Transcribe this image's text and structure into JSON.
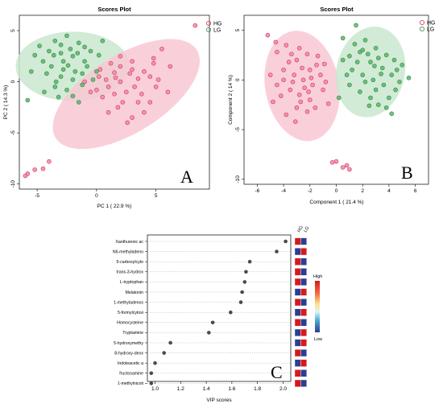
{
  "colors": {
    "hg": "#d9335e",
    "lg": "#2e8b3e",
    "hg_ellipse": "#f8c8d3",
    "lg_ellipse": "#c9e8cf",
    "heat_high": "#d7191c",
    "heat_low": "#2c3e91"
  },
  "chart_data": [
    {
      "panel": "A",
      "type": "scatter",
      "title": "Scores Plot",
      "xlabel": "PC 1 ( 22.9 %)",
      "ylabel": "PC 2 ( 14.3 %)",
      "xlim": [
        -6.5,
        9.5
      ],
      "ylim": [
        -10.5,
        6.5
      ],
      "xticks": [
        "-5",
        "0",
        "5"
      ],
      "xtick_values": [
        -5,
        0,
        5
      ],
      "yticks": [
        "-10",
        "-5",
        "0",
        "5"
      ],
      "ytick_values": [
        -10,
        -5,
        0,
        5
      ],
      "panel_label": "A",
      "legend": [
        "HG",
        "LG"
      ],
      "ellipses": [
        {
          "group": "LG",
          "cx": -2.0,
          "cy": 1.5,
          "rx": 4.8,
          "ry": 3.4,
          "angle": 0
        },
        {
          "group": "HG",
          "cx": 2.5,
          "cy": -1.2,
          "rx": 7.0,
          "ry": 3.8,
          "angle": 32
        }
      ],
      "series": [
        {
          "name": "HG",
          "points": [
            [
              8.3,
              5.5
            ],
            [
              5.5,
              3.2
            ],
            [
              4.8,
              2.3
            ],
            [
              6.2,
              1.5
            ],
            [
              0.2,
              0.5
            ],
            [
              1.5,
              0.9
            ],
            [
              2.0,
              1.5
            ],
            [
              3.0,
              2.0
            ],
            [
              4.0,
              1.0
            ],
            [
              1.0,
              -0.5
            ],
            [
              2.5,
              -1.0
            ],
            [
              3.5,
              -2.0
            ],
            [
              4.5,
              0.5
            ],
            [
              0.5,
              -1.5
            ],
            [
              1.8,
              -2.5
            ],
            [
              3.0,
              -3.5
            ],
            [
              4.5,
              -2.0
            ],
            [
              2.0,
              0.0
            ],
            [
              3.5,
              0.3
            ],
            [
              1.2,
              1.8
            ],
            [
              0.0,
              -0.8
            ],
            [
              2.8,
              0.8
            ],
            [
              5.0,
              -0.5
            ],
            [
              1.5,
              -1.2
            ],
            [
              2.2,
              -2.0
            ],
            [
              3.8,
              -1.2
            ],
            [
              4.0,
              -3.0
            ],
            [
              0.8,
              0.2
            ],
            [
              -0.5,
              -1.0
            ],
            [
              6.0,
              -1.0
            ],
            [
              2.0,
              2.5
            ],
            [
              3.2,
              -0.5
            ],
            [
              1.0,
              -3.0
            ],
            [
              4.8,
              1.8
            ],
            [
              -1.0,
              0.0
            ],
            [
              2.6,
              -4.0
            ],
            [
              3.0,
              1.2
            ],
            [
              1.6,
              0.4
            ],
            [
              0.3,
              1.2
            ],
            [
              5.2,
              0.2
            ],
            [
              -5.8,
              -9.0
            ],
            [
              -5.2,
              -8.6
            ],
            [
              -4.5,
              -8.5
            ],
            [
              -4.0,
              -7.8
            ],
            [
              -6.0,
              -9.2
            ]
          ]
        },
        {
          "name": "LG",
          "points": [
            [
              -3.5,
              4.0
            ],
            [
              -2.5,
              4.5
            ],
            [
              -1.5,
              3.8
            ],
            [
              -4.0,
              3.0
            ],
            [
              -3.0,
              2.8
            ],
            [
              -2.0,
              2.5
            ],
            [
              -1.0,
              2.0
            ],
            [
              -4.5,
              2.0
            ],
            [
              -3.8,
              1.5
            ],
            [
              -2.8,
              1.2
            ],
            [
              -1.8,
              1.0
            ],
            [
              -0.8,
              1.5
            ],
            [
              -3.0,
              0.5
            ],
            [
              -2.0,
              0.2
            ],
            [
              -4.2,
              0.8
            ],
            [
              -1.2,
              -0.3
            ],
            [
              -2.5,
              -0.8
            ],
            [
              -3.5,
              -0.5
            ],
            [
              -0.5,
              3.0
            ],
            [
              0.5,
              4.0
            ],
            [
              -2.2,
              3.2
            ],
            [
              -4.8,
              3.5
            ],
            [
              -5.5,
              1.0
            ],
            [
              -3.2,
              -1.5
            ],
            [
              -1.5,
              -2.0
            ],
            [
              0.0,
              1.0
            ],
            [
              -2.8,
              2.0
            ],
            [
              -3.6,
              2.6
            ],
            [
              -1.6,
              2.8
            ],
            [
              -2.4,
              1.6
            ],
            [
              -5.2,
              2.6
            ],
            [
              -0.3,
              0.2
            ],
            [
              -4.4,
              -1.0
            ],
            [
              -3.0,
              3.6
            ],
            [
              -1.0,
              3.4
            ],
            [
              -2.0,
              -1.4
            ],
            [
              0.2,
              2.6
            ],
            [
              -5.8,
              -1.8
            ],
            [
              -3.4,
              0.0
            ],
            [
              -1.2,
              0.8
            ]
          ]
        }
      ]
    },
    {
      "panel": "B",
      "type": "scatter",
      "title": "Scores Plot",
      "xlabel": "Component 1 ( 21.4 %)",
      "ylabel": "Component 2 ( 14 %)",
      "xlim": [
        -7,
        7
      ],
      "ylim": [
        -10.5,
        6.5
      ],
      "xticks": [
        "-6",
        "-4",
        "-2",
        "0",
        "2",
        "4",
        "6"
      ],
      "xtick_values": [
        -6,
        -4,
        -2,
        0,
        2,
        4,
        6
      ],
      "yticks": [
        "-10",
        "-5",
        "0",
        "5"
      ],
      "ytick_values": [
        -10,
        -5,
        0,
        5
      ],
      "panel_label": "B",
      "legend": [
        "HG",
        "LG"
      ],
      "ellipses": [
        {
          "group": "HG",
          "cx": -2.6,
          "cy": -0.6,
          "rx": 2.8,
          "ry": 5.6,
          "angle": 10
        },
        {
          "group": "LG",
          "cx": 2.6,
          "cy": 0.8,
          "rx": 2.6,
          "ry": 4.6,
          "angle": -12
        }
      ],
      "series": [
        {
          "name": "HG",
          "points": [
            [
              -5.2,
              4.5
            ],
            [
              -4.5,
              2.8
            ],
            [
              -3.8,
              3.5
            ],
            [
              -3.0,
              2.0
            ],
            [
              -2.2,
              2.6
            ],
            [
              -1.5,
              1.5
            ],
            [
              -4.0,
              1.0
            ],
            [
              -3.2,
              0.5
            ],
            [
              -2.5,
              0.0
            ],
            [
              -1.8,
              -0.5
            ],
            [
              -4.5,
              -0.5
            ],
            [
              -3.5,
              -1.0
            ],
            [
              -2.8,
              -1.5
            ],
            [
              -2.0,
              -2.0
            ],
            [
              -1.0,
              -1.0
            ],
            [
              -3.0,
              -2.8
            ],
            [
              -2.2,
              -3.2
            ],
            [
              -4.8,
              -2.2
            ],
            [
              -1.2,
              0.5
            ],
            [
              -3.6,
              1.8
            ],
            [
              -2.6,
              1.2
            ],
            [
              -1.6,
              -2.8
            ],
            [
              -0.8,
              -0.2
            ],
            [
              -5.0,
              0.5
            ],
            [
              -3.3,
              -0.2
            ],
            [
              -2.4,
              -0.8
            ],
            [
              -4.2,
              -1.6
            ],
            [
              -1.4,
              2.4
            ],
            [
              -2.0,
              1.0
            ],
            [
              -3.8,
              -3.5
            ],
            [
              -2.8,
              3.2
            ],
            [
              -0.9,
              1.6
            ],
            [
              -4.6,
              3.8
            ],
            [
              -3.1,
              -4.2
            ],
            [
              -2.1,
              -1.2
            ],
            [
              -1.9,
              0.2
            ],
            [
              -3.4,
              2.6
            ],
            [
              -0.6,
              -2.4
            ],
            [
              -4.0,
              0.0
            ],
            [
              -2.7,
              -2.2
            ],
            [
              0.0,
              -8.2
            ],
            [
              0.5,
              -8.8
            ],
            [
              1.0,
              -9.0
            ],
            [
              0.8,
              -8.6
            ],
            [
              -0.3,
              -8.3
            ]
          ]
        },
        {
          "name": "LG",
          "points": [
            [
              1.5,
              5.5
            ],
            [
              2.2,
              4.0
            ],
            [
              3.0,
              3.2
            ],
            [
              3.8,
              2.5
            ],
            [
              1.8,
              2.8
            ],
            [
              2.6,
              1.8
            ],
            [
              3.5,
              1.2
            ],
            [
              4.2,
              0.5
            ],
            [
              1.2,
              1.0
            ],
            [
              2.0,
              0.5
            ],
            [
              2.8,
              0.0
            ],
            [
              3.6,
              -0.5
            ],
            [
              4.5,
              -1.0
            ],
            [
              1.0,
              -0.5
            ],
            [
              1.8,
              -1.2
            ],
            [
              2.6,
              -1.8
            ],
            [
              3.2,
              -2.5
            ],
            [
              4.0,
              -1.8
            ],
            [
              0.5,
              2.0
            ],
            [
              5.0,
              1.5
            ],
            [
              2.4,
              2.6
            ],
            [
              3.0,
              -1.0
            ],
            [
              1.4,
              3.6
            ],
            [
              4.8,
              -0.2
            ],
            [
              0.8,
              0.5
            ],
            [
              2.2,
              -0.2
            ],
            [
              3.4,
              0.6
            ],
            [
              4.4,
              2.0
            ],
            [
              1.6,
              1.8
            ],
            [
              2.9,
              1.4
            ],
            [
              0.2,
              -1.8
            ],
            [
              3.8,
              -2.8
            ],
            [
              5.5,
              0.2
            ],
            [
              2.0,
              3.0
            ],
            [
              4.2,
              -3.4
            ],
            [
              1.0,
              2.4
            ],
            [
              3.2,
              2.2
            ],
            [
              2.5,
              -2.6
            ],
            [
              0.5,
              4.2
            ],
            [
              4.6,
              1.0
            ]
          ]
        }
      ]
    },
    {
      "panel": "C",
      "type": "scatter",
      "xlabel": "VIP scores",
      "xlim": [
        0.94,
        2.06
      ],
      "xticks": [
        "1.0",
        "1.2",
        "1.4",
        "1.6",
        "1.8",
        "2.0"
      ],
      "xtick_values": [
        1.0,
        1.2,
        1.4,
        1.6,
        1.8,
        2.0
      ],
      "panel_label": "C",
      "heatmap_columns": [
        "HG",
        "LG"
      ],
      "colorbar": {
        "high": "High",
        "low": "Low"
      },
      "features": [
        {
          "label": "Xanthurenic ac",
          "vip": 2.02,
          "hg": "high",
          "lg": "low"
        },
        {
          "label": "N6-methyladeno",
          "vip": 1.95,
          "hg": "low",
          "lg": "high"
        },
        {
          "label": "5-carboxylcyto",
          "vip": 1.74,
          "hg": "high",
          "lg": "low"
        },
        {
          "label": "trans-3-hydrox",
          "vip": 1.71,
          "hg": "high",
          "lg": "low"
        },
        {
          "label": "L-tryptophan",
          "vip": 1.7,
          "hg": "high",
          "lg": "low"
        },
        {
          "label": "Melatonin",
          "vip": 1.68,
          "hg": "low",
          "lg": "high"
        },
        {
          "label": "1-methyladenos",
          "vip": 1.67,
          "hg": "high",
          "lg": "low"
        },
        {
          "label": "5-formylcytosi",
          "vip": 1.59,
          "hg": "low",
          "lg": "high"
        },
        {
          "label": "Homocysteine",
          "vip": 1.45,
          "hg": "high",
          "lg": "low"
        },
        {
          "label": "Tryptamine",
          "vip": 1.42,
          "hg": "low",
          "lg": "high"
        },
        {
          "label": "5-hydroxymethy",
          "vip": 1.12,
          "hg": "low",
          "lg": "high"
        },
        {
          "label": "8-hydroxy-deox",
          "vip": 1.07,
          "hg": "high",
          "lg": "low"
        },
        {
          "label": "Indoleacetic a",
          "vip": 1.0,
          "hg": "low",
          "lg": "high"
        },
        {
          "label": "fructosamine",
          "vip": 0.97,
          "hg": "high",
          "lg": "low"
        },
        {
          "label": "1-methylnicoti",
          "vip": 0.97,
          "hg": "high",
          "lg": "low"
        }
      ]
    }
  ]
}
